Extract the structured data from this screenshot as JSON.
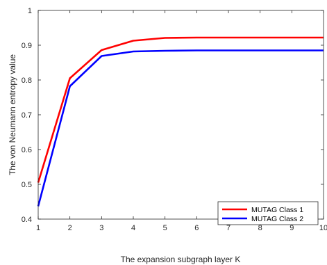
{
  "chart_data": {
    "type": "line",
    "title": "",
    "xlabel": "The expansion subgraph layer K",
    "ylabel": "The von Neumann entropy value",
    "x": [
      1,
      2,
      3,
      4,
      5,
      6,
      7,
      8,
      9,
      10
    ],
    "xlim": [
      1,
      10
    ],
    "ylim": [
      0.4,
      1
    ],
    "xticks": [
      "1",
      "2",
      "3",
      "4",
      "5",
      "6",
      "7",
      "8",
      "9",
      "10"
    ],
    "yticks": [
      "0.4",
      "0.5",
      "0.6",
      "0.7",
      "0.8",
      "0.9",
      "1"
    ],
    "grid": false,
    "legend_position": "bottom-right",
    "series": [
      {
        "name": "MUTAG Class 1",
        "color": "#ff0000",
        "values": [
          0.505,
          0.805,
          0.886,
          0.913,
          0.921,
          0.922,
          0.922,
          0.922,
          0.922,
          0.922
        ]
      },
      {
        "name": "MUTAG Class 2",
        "color": "#0000ff",
        "values": [
          0.437,
          0.782,
          0.869,
          0.882,
          0.884,
          0.885,
          0.885,
          0.885,
          0.885,
          0.885
        ]
      }
    ]
  }
}
